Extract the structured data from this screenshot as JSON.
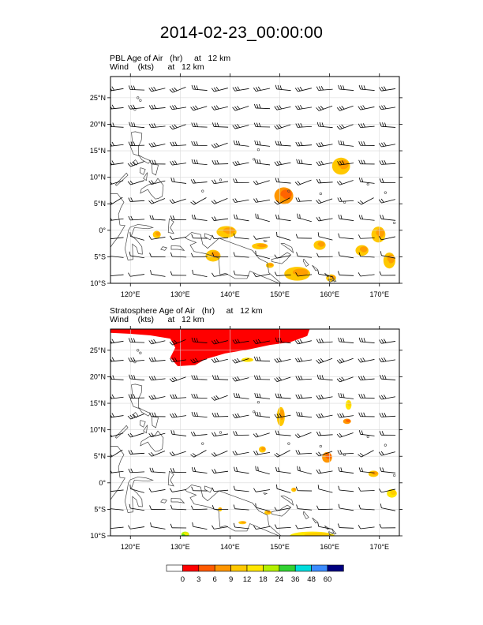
{
  "title": "2014-02-23_00:00:00",
  "colorbar": {
    "labels": [
      "0",
      "3",
      "6",
      "9",
      "12",
      "18",
      "24",
      "36",
      "48",
      "60"
    ],
    "colors": [
      "#ffffff",
      "#ff0000",
      "#ff5a00",
      "#ff9600",
      "#ffc800",
      "#ffe600",
      "#b4f000",
      "#32d232",
      "#00dcdc",
      "#3c8cff",
      "#000080"
    ]
  },
  "chart_data": [
    {
      "type": "heatmap",
      "title": "PBL Age of Air   (hr)     at   12 km",
      "subtitle": "Wind    (kts)      at   12 km",
      "xlim": [
        116,
        174
      ],
      "ylim": [
        -10,
        29
      ],
      "x_ticks": [
        120,
        130,
        140,
        150,
        160,
        170
      ],
      "x_tick_labels": [
        "120°E",
        "130°E",
        "140°E",
        "150°E",
        "160°E",
        "170°E"
      ],
      "y_ticks": [
        -10,
        -5,
        0,
        5,
        10,
        15,
        20,
        25
      ],
      "y_tick_labels": [
        "10°S",
        "5°S",
        "0°",
        "5°N",
        "10°N",
        "15°N",
        "20°N",
        "25°N"
      ],
      "grid": true,
      "blobs": [
        {
          "lon": 162.3,
          "lat": 12.1,
          "rlon": 1.8,
          "rlat": 1.6,
          "value": 10
        },
        {
          "lon": 150.8,
          "lat": 6.5,
          "rlon": 1.9,
          "rlat": 1.6,
          "value": 7
        },
        {
          "lon": 139.3,
          "lat": -0.3,
          "rlon": 2.0,
          "rlat": 1.1,
          "value": 9
        },
        {
          "lon": 125.3,
          "lat": -0.8,
          "rlon": 0.8,
          "rlat": 0.7,
          "value": 10
        },
        {
          "lon": 136.6,
          "lat": -4.8,
          "rlon": 1.5,
          "rlat": 1.1,
          "value": 9
        },
        {
          "lon": 146.0,
          "lat": -3.0,
          "rlon": 1.6,
          "rlat": 0.6,
          "value": 10
        },
        {
          "lon": 158.0,
          "lat": -2.8,
          "rlon": 1.2,
          "rlat": 0.9,
          "value": 10
        },
        {
          "lon": 169.8,
          "lat": -0.8,
          "rlon": 1.4,
          "rlat": 1.5,
          "value": 9
        },
        {
          "lon": 166.5,
          "lat": -3.8,
          "rlon": 1.3,
          "rlat": 1.0,
          "value": 10
        },
        {
          "lon": 172.0,
          "lat": -5.7,
          "rlon": 1.2,
          "rlat": 1.5,
          "value": 9
        },
        {
          "lon": 153.5,
          "lat": -8.2,
          "rlon": 2.6,
          "rlat": 1.3,
          "value": 10
        },
        {
          "lon": 160.3,
          "lat": -9.0,
          "rlon": 1.0,
          "rlat": 0.7,
          "value": 9
        },
        {
          "lon": 148.0,
          "lat": -6.6,
          "rlon": 0.8,
          "rlat": 0.5,
          "value": 10
        }
      ],
      "wind": {
        "u_east": 40,
        "v_north": 5
      }
    },
    {
      "type": "heatmap",
      "title": "Stratosphere Age of Air   (hr)     at   12 km",
      "subtitle": "Wind    (kts)      at   12 km",
      "xlim": [
        116,
        174
      ],
      "ylim": [
        -10,
        29
      ],
      "x_ticks": [
        120,
        130,
        140,
        150,
        160,
        170
      ],
      "x_tick_labels": [
        "120°E",
        "130°E",
        "140°E",
        "150°E",
        "160°E",
        "170°E"
      ],
      "y_ticks": [
        -10,
        -5,
        0,
        5,
        10,
        15,
        20,
        25
      ],
      "y_tick_labels": [
        "10°S",
        "5°S",
        "0°",
        "5°N",
        "10°N",
        "15°N",
        "20°N",
        "25°N"
      ],
      "grid": true,
      "red_region": [
        [
          116,
          29
        ],
        [
          156,
          29
        ],
        [
          155.5,
          27.7
        ],
        [
          152,
          26.5
        ],
        [
          148,
          26.0
        ],
        [
          144,
          25.2
        ],
        [
          139,
          24.4
        ],
        [
          135,
          23.3
        ],
        [
          133,
          22.2
        ],
        [
          129.5,
          22.0
        ],
        [
          128,
          23.6
        ],
        [
          129,
          25.5
        ],
        [
          128,
          27.2
        ],
        [
          124,
          27.8
        ],
        [
          120,
          28.1
        ],
        [
          116,
          28.3
        ]
      ],
      "blobs": [
        {
          "lon": 156.5,
          "lat": -10.0,
          "rlon": 4.5,
          "rlat": 0.8,
          "value": 13
        },
        {
          "lon": 131.0,
          "lat": -9.7,
          "rlon": 0.8,
          "rlat": 0.5,
          "value": 22
        },
        {
          "lon": 143.5,
          "lat": 23.2,
          "rlon": 1.2,
          "rlat": 0.4,
          "value": 12
        },
        {
          "lon": 146.5,
          "lat": 6.3,
          "rlon": 0.7,
          "rlat": 0.6,
          "value": 10
        },
        {
          "lon": 159.5,
          "lat": 4.8,
          "rlon": 1.0,
          "rlat": 1.0,
          "value": 6
        },
        {
          "lon": 168.8,
          "lat": 1.7,
          "rlon": 1.0,
          "rlat": 0.6,
          "value": 9
        },
        {
          "lon": 172.5,
          "lat": -2.0,
          "rlon": 1.0,
          "rlat": 0.8,
          "value": 12
        },
        {
          "lon": 150.2,
          "lat": 12.5,
          "rlon": 0.8,
          "rlat": 1.8,
          "value": 10
        },
        {
          "lon": 163.8,
          "lat": 14.7,
          "rlon": 0.6,
          "rlat": 0.9,
          "value": 12
        },
        {
          "lon": 163.5,
          "lat": 11.6,
          "rlon": 0.8,
          "rlat": 0.5,
          "value": 6
        },
        {
          "lon": 147.6,
          "lat": -5.6,
          "rlon": 0.7,
          "rlat": 0.4,
          "value": 10
        },
        {
          "lon": 138.0,
          "lat": -5.0,
          "rlon": 0.4,
          "rlat": 0.4,
          "value": 9
        },
        {
          "lon": 142.5,
          "lat": -7.5,
          "rlon": 0.8,
          "rlat": 0.3,
          "value": 9
        },
        {
          "lon": 152.8,
          "lat": -1.3,
          "rlon": 0.5,
          "rlat": 0.4,
          "value": 10
        }
      ],
      "wind": {
        "u_east": 40,
        "v_north": 5
      }
    }
  ]
}
